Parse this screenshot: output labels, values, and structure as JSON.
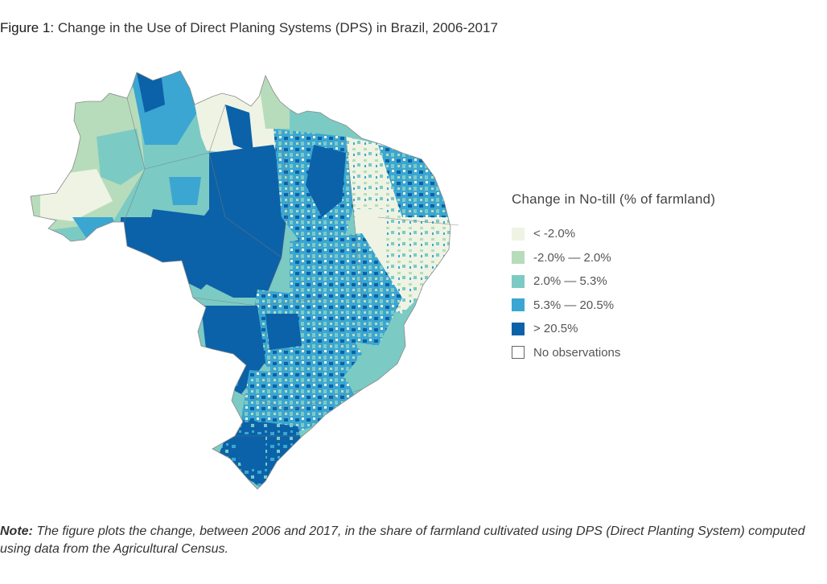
{
  "figure": {
    "label": "Figure 1:",
    "title": "Change in the Use of Direct Planing Systems (DPS) in Brazil, 2006-2017"
  },
  "legend": {
    "title": "Change in No-till (% of farmland)",
    "items": [
      {
        "label": "< -2.0%",
        "color": "#eef3e4"
      },
      {
        "label": "-2.0% — 2.0%",
        "color": "#b7dcbb"
      },
      {
        "label": "2.0% — 5.3%",
        "color": "#7ccac4"
      },
      {
        "label": "5.3% — 20.5%",
        "color": "#3ba6d1"
      },
      {
        "label": "> 20.5%",
        "color": "#0b62a8"
      },
      {
        "label": "No observations",
        "color": "#ffffff"
      }
    ]
  },
  "map": {
    "name": "Brazil municipalities choropleth",
    "region_colors": {
      "north": "#b7dcbb",
      "north_light": "#eef3e4",
      "northeast": "#eef3e4",
      "center": "#0b62a8",
      "southeast": "#3ba6d1",
      "south": "#0b62a8",
      "teal": "#7ccac4",
      "border": "#8a8a8a"
    }
  },
  "note": {
    "label": "Note:",
    "text": " The figure plots the change, between 2006 and 2017, in the share of farmland cultivated using DPS (Direct Planting System) computed using data from the Agricultural Census."
  }
}
